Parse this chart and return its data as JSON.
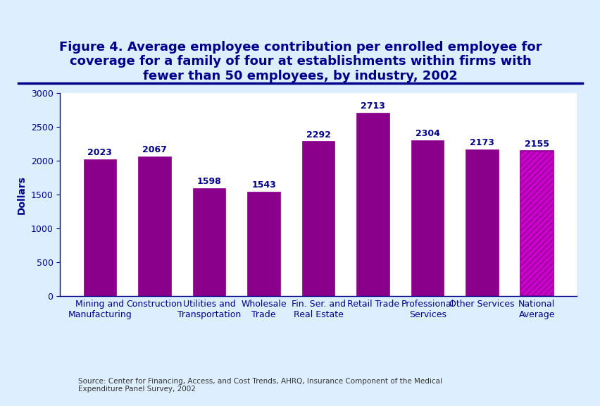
{
  "title": "Figure 4. Average employee contribution per enrolled employee for\ncoverage for a family of four at establishments within firms with\nfewer than 50 employees, by industry, 2002",
  "categories": [
    "Mining and\nManufacturing",
    "Construction",
    "Utilities and\nTransportation",
    "Wholesale\nTrade",
    "Fin. Ser. and\nReal Estate",
    "Retail Trade",
    "Professional\nServices",
    "Other Services",
    "National\nAverage"
  ],
  "values": [
    2023,
    2067,
    1598,
    1543,
    2292,
    2713,
    2304,
    2173,
    2155
  ],
  "bar_color": "#8B008B",
  "national_avg_color": "#CC00CC",
  "hatch_color": "#FFFFFF",
  "ylabel": "Dollars",
  "ylim": [
    0,
    3000
  ],
  "yticks": [
    0,
    500,
    1000,
    1500,
    2000,
    2500,
    3000
  ],
  "background_color": "#DDEEFF",
  "plot_bg_color": "#FFFFFF",
  "title_color": "#00008B",
  "axis_color": "#00008B",
  "label_color": "#00008B",
  "source_text": "Source: Center for Financing, Access, and Cost Trends, AHRQ, Insurance Component of the Medical\nExpenditure Panel Survey, 2002",
  "title_fontsize": 13,
  "bar_label_fontsize": 9,
  "axis_label_fontsize": 10,
  "tick_label_fontsize": 9
}
